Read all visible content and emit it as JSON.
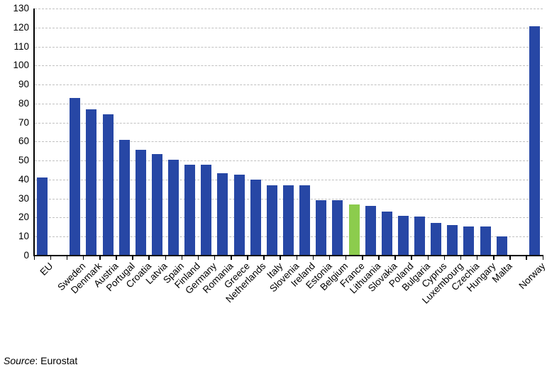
{
  "chart_data": {
    "type": "bar",
    "title": "",
    "categories": [
      "EU",
      "Sweden",
      "Denmark",
      "Austria",
      "Portugal",
      "Croatia",
      "Latvia",
      "Spain",
      "Finland",
      "Germany",
      "Romania",
      "Greece",
      "Netherlands",
      "Italy",
      "Slovenia",
      "Ireland",
      "Estonia",
      "Belgium",
      "France",
      "Lithuania",
      "Slovakia",
      "Poland",
      "Bulgaria",
      "Cyprus",
      "Luxembourg",
      "Czechia",
      "Hungary",
      "Malta",
      "Norway"
    ],
    "values": [
      41,
      83,
      77,
      74.5,
      61,
      55.5,
      53.5,
      50.5,
      48,
      48,
      43.5,
      42.5,
      40,
      37,
      37,
      37,
      29,
      29,
      27,
      26,
      23,
      21,
      20.5,
      17,
      16,
      15.5,
      15.5,
      10,
      120.5
    ],
    "highlight_category": "France",
    "colors": {
      "bar": "#2747A5",
      "highlight": "#8CCC4D",
      "gridline": "#C0C0C0",
      "axis": "#000000"
    },
    "xlabel": "",
    "ylabel": "",
    "ylim": [
      0,
      130
    ],
    "yticks": [
      0,
      10,
      20,
      30,
      40,
      50,
      60,
      70,
      80,
      90,
      100,
      110,
      120,
      130
    ],
    "grid": "horizontal-dashed",
    "legend": "none",
    "slot_count": 31,
    "gap_slots": [
      1,
      29
    ]
  },
  "source": {
    "prefix": "Source",
    "text": ": Eurostat"
  }
}
